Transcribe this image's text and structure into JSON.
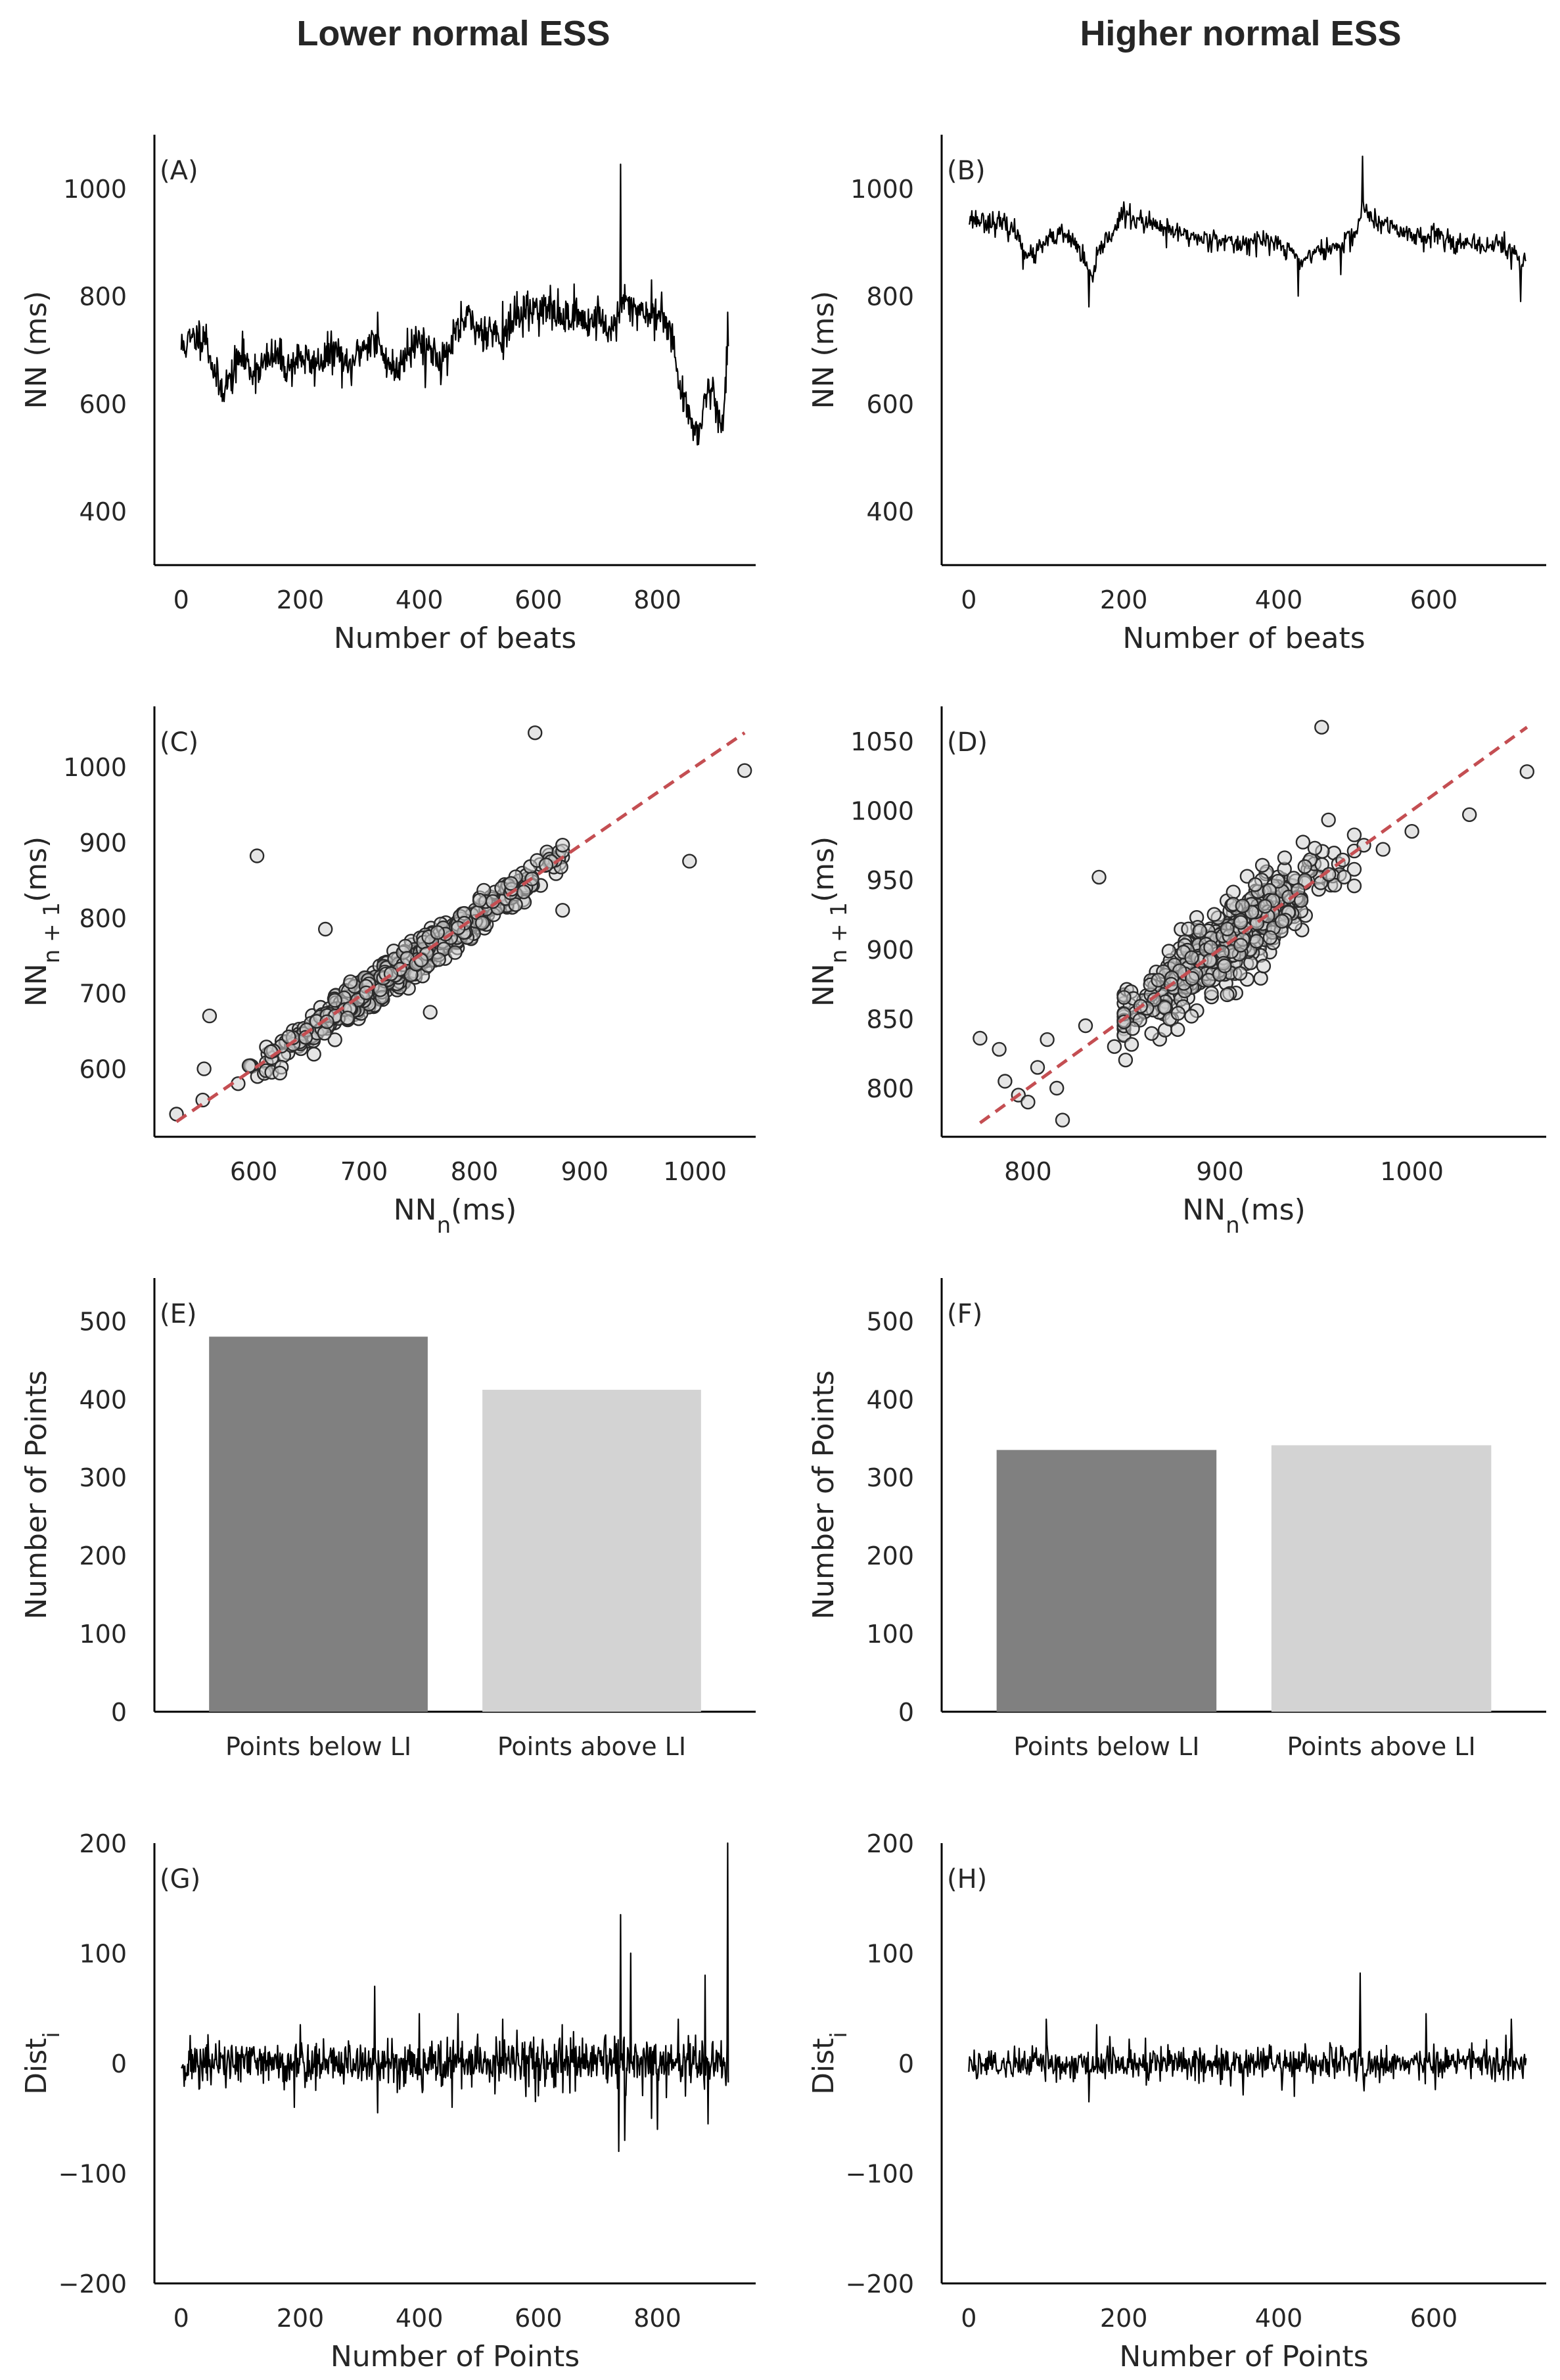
{
  "column_titles": {
    "left": "Lower normal ESS",
    "right": "Higher normal ESS"
  },
  "chart_data": [
    {
      "id": "A",
      "panel_label": "(A)",
      "type": "line",
      "xlabel": "Number of beats",
      "ylabel": "NN (ms)",
      "xlim": [
        -45,
        965
      ],
      "ylim": [
        300,
        1100
      ],
      "xticks": [
        0,
        200,
        400,
        600,
        800
      ],
      "yticks": [
        400,
        600,
        800,
        1000
      ],
      "grid": false,
      "n_points": 920,
      "anchors": [
        [
          0,
          705
        ],
        [
          20,
          720
        ],
        [
          40,
          730
        ],
        [
          55,
          660
        ],
        [
          65,
          628
        ],
        [
          80,
          640
        ],
        [
          100,
          690
        ],
        [
          120,
          660
        ],
        [
          140,
          675
        ],
        [
          160,
          690
        ],
        [
          180,
          665
        ],
        [
          200,
          690
        ],
        [
          220,
          670
        ],
        [
          240,
          685
        ],
        [
          260,
          700
        ],
        [
          280,
          660
        ],
        [
          300,
          700
        ],
        [
          320,
          720
        ],
        [
          340,
          690
        ],
        [
          360,
          660
        ],
        [
          380,
          700
        ],
        [
          400,
          720
        ],
        [
          420,
          700
        ],
        [
          440,
          680
        ],
        [
          460,
          720
        ],
        [
          480,
          760
        ],
        [
          500,
          735
        ],
        [
          520,
          740
        ],
        [
          540,
          720
        ],
        [
          560,
          760
        ],
        [
          580,
          770
        ],
        [
          600,
          780
        ],
        [
          620,
          770
        ],
        [
          640,
          760
        ],
        [
          660,
          770
        ],
        [
          680,
          750
        ],
        [
          700,
          760
        ],
        [
          720,
          735
        ],
        [
          735,
          760
        ],
        [
          745,
          790
        ],
        [
          760,
          780
        ],
        [
          780,
          770
        ],
        [
          800,
          760
        ],
        [
          815,
          760
        ],
        [
          825,
          730
        ],
        [
          835,
          640
        ],
        [
          845,
          600
        ],
        [
          860,
          560
        ],
        [
          870,
          550
        ],
        [
          880,
          610
        ],
        [
          890,
          640
        ],
        [
          900,
          580
        ],
        [
          910,
          560
        ],
        [
          918,
          720
        ],
        [
          920,
          640
        ]
      ],
      "jitter": 18,
      "seed": 11,
      "spikes": [
        [
          105,
          720
        ],
        [
          165,
          700
        ],
        [
          285,
          650
        ],
        [
          330,
          770
        ],
        [
          380,
          740
        ],
        [
          410,
          630
        ],
        [
          450,
          710
        ],
        [
          470,
          790
        ],
        [
          540,
          790
        ],
        [
          575,
          800
        ],
        [
          620,
          820
        ],
        [
          700,
          800
        ],
        [
          738,
          1045
        ],
        [
          790,
          830
        ],
        [
          870,
          540
        ],
        [
          910,
          550
        ],
        [
          918,
          770
        ]
      ]
    },
    {
      "id": "B",
      "panel_label": "(B)",
      "type": "line",
      "xlabel": "Number of beats",
      "ylabel": "NN (ms)",
      "xlim": [
        -35,
        745
      ],
      "ylim": [
        300,
        1100
      ],
      "xticks": [
        0,
        200,
        400,
        600
      ],
      "yticks": [
        400,
        600,
        800,
        1000
      ],
      "grid": false,
      "n_points": 720,
      "anchors": [
        [
          0,
          945
        ],
        [
          20,
          940
        ],
        [
          40,
          935
        ],
        [
          60,
          920
        ],
        [
          70,
          895
        ],
        [
          80,
          870
        ],
        [
          100,
          900
        ],
        [
          120,
          915
        ],
        [
          140,
          895
        ],
        [
          150,
          860
        ],
        [
          160,
          830
        ],
        [
          170,
          890
        ],
        [
          190,
          930
        ],
        [
          200,
          950
        ],
        [
          220,
          940
        ],
        [
          240,
          930
        ],
        [
          260,
          920
        ],
        [
          280,
          915
        ],
        [
          300,
          905
        ],
        [
          320,
          910
        ],
        [
          340,
          895
        ],
        [
          360,
          900
        ],
        [
          380,
          905
        ],
        [
          400,
          895
        ],
        [
          420,
          880
        ],
        [
          430,
          860
        ],
        [
          440,
          880
        ],
        [
          460,
          885
        ],
        [
          480,
          895
        ],
        [
          500,
          920
        ],
        [
          510,
          970
        ],
        [
          520,
          940
        ],
        [
          540,
          930
        ],
        [
          560,
          920
        ],
        [
          580,
          910
        ],
        [
          600,
          915
        ],
        [
          620,
          905
        ],
        [
          640,
          895
        ],
        [
          660,
          890
        ],
        [
          680,
          900
        ],
        [
          700,
          885
        ],
        [
          715,
          860
        ],
        [
          720,
          870
        ]
      ],
      "jitter": 10,
      "seed": 23,
      "spikes": [
        [
          70,
          850
        ],
        [
          155,
          780
        ],
        [
          200,
          975
        ],
        [
          255,
          890
        ],
        [
          410,
          870
        ],
        [
          425,
          800
        ],
        [
          480,
          840
        ],
        [
          508,
          1060
        ],
        [
          545,
          935
        ],
        [
          600,
          935
        ],
        [
          700,
          850
        ],
        [
          712,
          790
        ]
      ]
    },
    {
      "id": "C",
      "panel_label": "(C)",
      "type": "scatter",
      "xlabel": "NN",
      "xlabel_sub": "n",
      "xlabel_unit": "(ms)",
      "ylabel": "NN",
      "ylabel_sub": "n + 1",
      "ylabel_unit": "(ms)",
      "xlim": [
        510,
        1055
      ],
      "ylim": [
        510,
        1080
      ],
      "xticks": [
        600,
        700,
        800,
        900,
        1000
      ],
      "yticks": [
        600,
        700,
        800,
        900,
        1000
      ],
      "grid": false,
      "n_points": 600,
      "seed": 37,
      "cluster": {
        "x_min": 530,
        "x_max": 880,
        "center": 740,
        "sd": 60,
        "noise": 12
      },
      "reference_line": {
        "from": [
          530,
          530
        ],
        "to": [
          1045,
          1045
        ],
        "color": "#c44e52",
        "style": "dashed"
      },
      "outliers": [
        [
          855,
          1045
        ],
        [
          1045,
          995
        ],
        [
          603,
          882
        ],
        [
          995,
          875
        ],
        [
          560,
          670
        ],
        [
          880,
          810
        ],
        [
          865,
          870
        ],
        [
          665,
          785
        ],
        [
          760,
          675
        ],
        [
          555,
          600
        ],
        [
          530,
          540
        ]
      ]
    },
    {
      "id": "D",
      "panel_label": "(D)",
      "type": "scatter",
      "xlabel": "NN",
      "xlabel_sub": "n",
      "xlabel_unit": "(ms)",
      "ylabel": "NN",
      "ylabel_sub": "n + 1",
      "ylabel_unit": "(ms)",
      "xlim": [
        755,
        1070
      ],
      "ylim": [
        765,
        1075
      ],
      "xticks": [
        800,
        900,
        1000
      ],
      "yticks": [
        800,
        850,
        900,
        950,
        1000,
        1050
      ],
      "grid": false,
      "n_points": 560,
      "seed": 53,
      "cluster": {
        "x_min": 850,
        "x_max": 970,
        "center": 905,
        "sd": 28,
        "noise": 14
      },
      "reference_line": {
        "from": [
          775,
          775
        ],
        "to": [
          1060,
          1060
        ],
        "color": "#c44e52",
        "style": "dashed"
      },
      "outliers": [
        [
          953,
          1060
        ],
        [
          1060,
          1028
        ],
        [
          1030,
          997
        ],
        [
          837,
          952
        ],
        [
          775,
          836
        ],
        [
          785,
          828
        ],
        [
          788,
          805
        ],
        [
          795,
          795
        ],
        [
          800,
          790
        ],
        [
          805,
          815
        ],
        [
          810,
          835
        ],
        [
          815,
          800
        ],
        [
          818,
          777
        ],
        [
          830,
          845
        ],
        [
          845,
          830
        ],
        [
          985,
          972
        ],
        [
          1000,
          985
        ],
        [
          975,
          975
        ]
      ]
    },
    {
      "id": "E",
      "panel_label": "(E)",
      "type": "bar",
      "categories": [
        "Points below LI",
        "Points above LI"
      ],
      "values": [
        480,
        412
      ],
      "colors": [
        "#808080",
        "#d3d3d3"
      ],
      "xlabel": "",
      "ylabel": "Number of Points",
      "ylim": [
        0,
        555
      ],
      "yticks": [
        0,
        100,
        200,
        300,
        400,
        500
      ],
      "grid": false
    },
    {
      "id": "F",
      "panel_label": "(F)",
      "type": "bar",
      "categories": [
        "Points below LI",
        "Points above LI"
      ],
      "values": [
        335,
        341
      ],
      "colors": [
        "#808080",
        "#d3d3d3"
      ],
      "xlabel": "",
      "ylabel": "Number of Points",
      "ylim": [
        0,
        555
      ],
      "yticks": [
        0,
        100,
        200,
        300,
        400,
        500
      ],
      "grid": false
    },
    {
      "id": "G",
      "panel_label": "(G)",
      "type": "line",
      "xlabel": "Number of Points",
      "ylabel": "Dist",
      "ylabel_sub": "i",
      "xlim": [
        -45,
        965
      ],
      "ylim": [
        -200,
        200
      ],
      "xticks": [
        0,
        200,
        400,
        600,
        800
      ],
      "yticks": [
        -200,
        -100,
        0,
        100,
        200
      ],
      "grid": false,
      "n_points": 920,
      "anchors": [
        [
          0,
          0
        ],
        [
          920,
          0
        ]
      ],
      "jitter": 11,
      "seed": 71,
      "spikes": [
        [
          190,
          -40
        ],
        [
          200,
          35
        ],
        [
          325,
          70
        ],
        [
          330,
          -45
        ],
        [
          400,
          45
        ],
        [
          455,
          -40
        ],
        [
          465,
          45
        ],
        [
          540,
          40
        ],
        [
          640,
          35
        ],
        [
          735,
          -80
        ],
        [
          738,
          135
        ],
        [
          745,
          -70
        ],
        [
          755,
          100
        ],
        [
          790,
          -50
        ],
        [
          800,
          -60
        ],
        [
          835,
          40
        ],
        [
          880,
          80
        ],
        [
          885,
          -55
        ],
        [
          918,
          200
        ],
        [
          920,
          -65
        ]
      ]
    },
    {
      "id": "H",
      "panel_label": "(H)",
      "type": "line",
      "xlabel": "Number of Points",
      "ylabel": "Dist",
      "ylabel_sub": "i",
      "xlim": [
        -35,
        745
      ],
      "ylim": [
        -200,
        200
      ],
      "xticks": [
        0,
        200,
        400,
        600
      ],
      "yticks": [
        -200,
        -100,
        0,
        100,
        200
      ],
      "grid": false,
      "n_points": 720,
      "anchors": [
        [
          0,
          0
        ],
        [
          720,
          0
        ]
      ],
      "jitter": 8,
      "seed": 89,
      "spikes": [
        [
          100,
          40
        ],
        [
          155,
          -35
        ],
        [
          165,
          35
        ],
        [
          420,
          -30
        ],
        [
          505,
          82
        ],
        [
          510,
          -25
        ],
        [
          590,
          45
        ],
        [
          700,
          40
        ]
      ]
    }
  ]
}
